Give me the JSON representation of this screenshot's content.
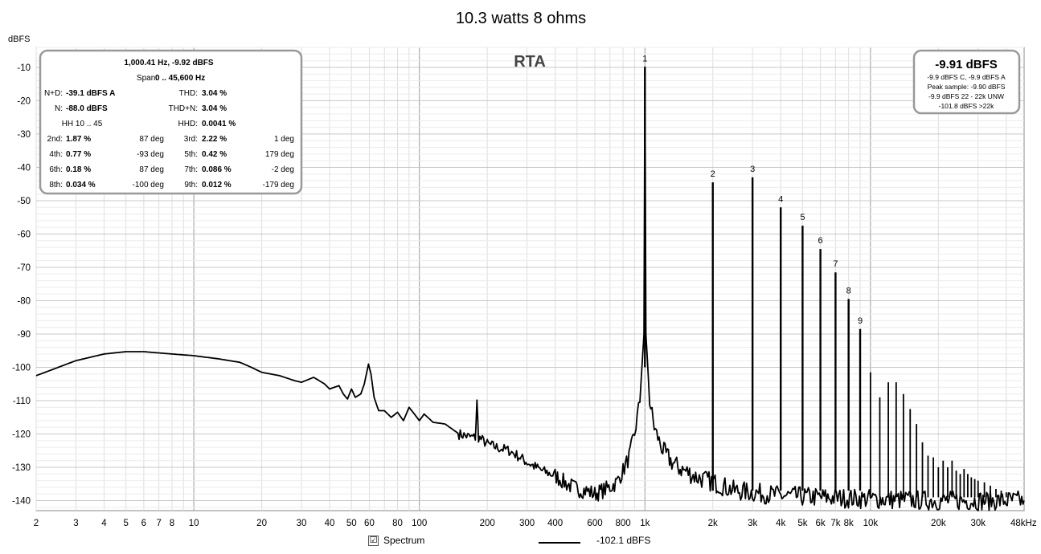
{
  "chart_data": {
    "type": "line",
    "title": "10.3 watts 8 ohms",
    "panel_label": "RTA",
    "ylabel": "dBFS",
    "xunit": "48kHz",
    "xscale": "log",
    "xlim": [
      2,
      48000
    ],
    "ylim": [
      -143,
      -4
    ],
    "grid": true,
    "x_ticks": [
      {
        "v": 2,
        "l": "2"
      },
      {
        "v": 3,
        "l": "3"
      },
      {
        "v": 4,
        "l": "4"
      },
      {
        "v": 5,
        "l": "5"
      },
      {
        "v": 6,
        "l": "6"
      },
      {
        "v": 7,
        "l": "7"
      },
      {
        "v": 8,
        "l": "8"
      },
      {
        "v": 10,
        "l": "10"
      },
      {
        "v": 20,
        "l": "20"
      },
      {
        "v": 30,
        "l": "30"
      },
      {
        "v": 40,
        "l": "40"
      },
      {
        "v": 50,
        "l": "50"
      },
      {
        "v": 60,
        "l": "60"
      },
      {
        "v": 80,
        "l": "80"
      },
      {
        "v": 100,
        "l": "100"
      },
      {
        "v": 200,
        "l": "200"
      },
      {
        "v": 300,
        "l": "300"
      },
      {
        "v": 400,
        "l": "400"
      },
      {
        "v": 600,
        "l": "600"
      },
      {
        "v": 800,
        "l": "800"
      },
      {
        "v": 1000,
        "l": "1k"
      },
      {
        "v": 2000,
        "l": "2k"
      },
      {
        "v": 3000,
        "l": "3k"
      },
      {
        "v": 4000,
        "l": "4k"
      },
      {
        "v": 5000,
        "l": "5k"
      },
      {
        "v": 6000,
        "l": "6k"
      },
      {
        "v": 7000,
        "l": "7k"
      },
      {
        "v": 8000,
        "l": "8k"
      },
      {
        "v": 10000,
        "l": "10k"
      },
      {
        "v": 20000,
        "l": "20k"
      },
      {
        "v": 30000,
        "l": "30k"
      }
    ],
    "y_ticks": [
      -10,
      -20,
      -30,
      -40,
      -50,
      -60,
      -70,
      -80,
      -90,
      -100,
      -110,
      -120,
      -130,
      -140
    ],
    "harmonics": [
      {
        "n": "1",
        "f": 1000,
        "db": -9.9
      },
      {
        "n": "2",
        "f": 2000,
        "db": -44.5
      },
      {
        "n": "3",
        "f": 3000,
        "db": -43
      },
      {
        "n": "4",
        "f": 4000,
        "db": -52
      },
      {
        "n": "5",
        "f": 5000,
        "db": -57.5
      },
      {
        "n": "6",
        "f": 6000,
        "db": -64.5
      },
      {
        "n": "7",
        "f": 7000,
        "db": -71.5
      },
      {
        "n": "8",
        "f": 8000,
        "db": -79.5
      },
      {
        "n": "9",
        "f": 9000,
        "db": -88.5
      }
    ],
    "high_harmonics": [
      {
        "f": 10000,
        "db": -101.5
      },
      {
        "f": 11000,
        "db": -109
      },
      {
        "f": 12000,
        "db": -104.5
      },
      {
        "f": 13000,
        "db": -104.5
      },
      {
        "f": 14000,
        "db": -108
      },
      {
        "f": 15000,
        "db": -112.5
      },
      {
        "f": 16000,
        "db": -117
      },
      {
        "f": 17000,
        "db": -122.5
      },
      {
        "f": 18000,
        "db": -126.5
      },
      {
        "f": 19000,
        "db": -127
      },
      {
        "f": 20000,
        "db": -130
      },
      {
        "f": 21000,
        "db": -128
      },
      {
        "f": 22000,
        "db": -130
      },
      {
        "f": 23000,
        "db": -128
      },
      {
        "f": 24000,
        "db": -131
      },
      {
        "f": 25000,
        "db": -132
      },
      {
        "f": 26000,
        "db": -130.5
      },
      {
        "f": 27000,
        "db": -132
      },
      {
        "f": 28000,
        "db": -133
      },
      {
        "f": 29000,
        "db": -133.5
      },
      {
        "f": 30000,
        "db": -134
      },
      {
        "f": 32000,
        "db": -134.5
      },
      {
        "f": 34000,
        "db": -135.5
      },
      {
        "f": 36000,
        "db": -136.5
      },
      {
        "f": 38000,
        "db": -137
      },
      {
        "f": 40000,
        "db": -137.5
      }
    ],
    "noise_floor": [
      [
        2,
        -102.5
      ],
      [
        3,
        -98
      ],
      [
        4,
        -96
      ],
      [
        5,
        -95.3
      ],
      [
        6,
        -95.3
      ],
      [
        8,
        -96
      ],
      [
        10,
        -96.5
      ],
      [
        13,
        -97.5
      ],
      [
        16,
        -98.5
      ],
      [
        18,
        -100
      ],
      [
        20,
        -101.5
      ],
      [
        24,
        -102.5
      ],
      [
        28,
        -104
      ],
      [
        30,
        -104.5
      ],
      [
        34,
        -103
      ],
      [
        38,
        -105
      ],
      [
        40,
        -106.5
      ],
      [
        44,
        -105.5
      ],
      [
        46,
        -108
      ],
      [
        48,
        -109.5
      ],
      [
        50,
        -106.5
      ],
      [
        52,
        -109
      ],
      [
        55,
        -108
      ],
      [
        57,
        -105
      ],
      [
        59.5,
        -99
      ],
      [
        61,
        -102
      ],
      [
        63,
        -109
      ],
      [
        66,
        -113
      ],
      [
        70,
        -113
      ],
      [
        75,
        -115
      ],
      [
        80,
        -113.5
      ],
      [
        85,
        -116
      ],
      [
        90,
        -112
      ],
      [
        95,
        -114
      ],
      [
        100,
        -116
      ],
      [
        105,
        -114
      ],
      [
        115,
        -116.5
      ],
      [
        130,
        -117
      ],
      [
        150,
        -120
      ],
      [
        170,
        -121
      ],
      [
        177,
        -121
      ],
      [
        180,
        -110.5
      ],
      [
        183,
        -121
      ],
      [
        200,
        -123
      ],
      [
        220,
        -124
      ],
      [
        250,
        -125
      ],
      [
        280,
        -127
      ],
      [
        300,
        -128.5
      ],
      [
        350,
        -131
      ],
      [
        400,
        -132.5
      ],
      [
        450,
        -135
      ],
      [
        500,
        -136.5
      ],
      [
        550,
        -137
      ],
      [
        600,
        -138
      ],
      [
        650,
        -137
      ],
      [
        700,
        -136
      ],
      [
        750,
        -134.5
      ],
      [
        800,
        -131
      ],
      [
        850,
        -127
      ],
      [
        900,
        -120
      ],
      [
        950,
        -110
      ],
      [
        990,
        -90
      ],
      [
        1000,
        -9.9
      ],
      [
        1010,
        -90
      ],
      [
        1050,
        -110
      ],
      [
        1100,
        -118
      ],
      [
        1200,
        -125
      ],
      [
        1300,
        -128
      ],
      [
        1400,
        -130
      ],
      [
        1500,
        -131
      ],
      [
        1700,
        -133
      ],
      [
        1900,
        -134
      ],
      [
        2100,
        -135
      ],
      [
        2500,
        -137
      ],
      [
        3000,
        -137.5
      ],
      [
        4000,
        -138.5
      ],
      [
        6000,
        -139
      ],
      [
        10000,
        -139.5
      ],
      [
        20000,
        -140
      ],
      [
        48000,
        -140
      ]
    ],
    "legend": [
      {
        "check": "☑",
        "label": "Spectrum"
      },
      {
        "label": "-102.1 dBFS"
      }
    ]
  },
  "info_box": {
    "header1": "1,000.41 Hz, -9.92 dBFS",
    "header2_label": "Span:",
    "header2_value": "0 .. 45,600 Hz",
    "nd_label": "N+D:",
    "nd_value": "-39.1 dBFS A",
    "thd_label": "THD:",
    "thd_value": "3.04 %",
    "n_label": "N:",
    "n_value": "-88.0 dBFS",
    "thdn_label": "THD+N:",
    "thdn_value": "3.04 %",
    "hh_label": "HH 10 .. 45",
    "hhd_label": "HHD:",
    "hhd_value": "0.0041 %",
    "rows": [
      {
        "l1": "2nd:",
        "v1": "1.87 %",
        "p1": "87 deg",
        "l2": "3rd:",
        "v2": "2.22 %",
        "p2": "1 deg"
      },
      {
        "l1": "4th:",
        "v1": "0.77 %",
        "p1": "-93 deg",
        "l2": "5th:",
        "v2": "0.42 %",
        "p2": "179 deg"
      },
      {
        "l1": "6th:",
        "v1": "0.18 %",
        "p1": "87 deg",
        "l2": "7th:",
        "v2": "0.086 %",
        "p2": "-2 deg"
      },
      {
        "l1": "8th:",
        "v1": "0.034 %",
        "p1": "-100 deg",
        "l2": "9th:",
        "v2": "0.012 %",
        "p2": "-179 deg"
      }
    ]
  },
  "peak_box": {
    "main": "-9.91 dBFS",
    "line1": "-9.9 dBFS C, -9.9 dBFS A",
    "line2": "Peak sample: -9.90 dBFS",
    "line3": "-9.9 dBFS 22 - 22k UNW",
    "line4": "-101.8 dBFS >22k"
  }
}
